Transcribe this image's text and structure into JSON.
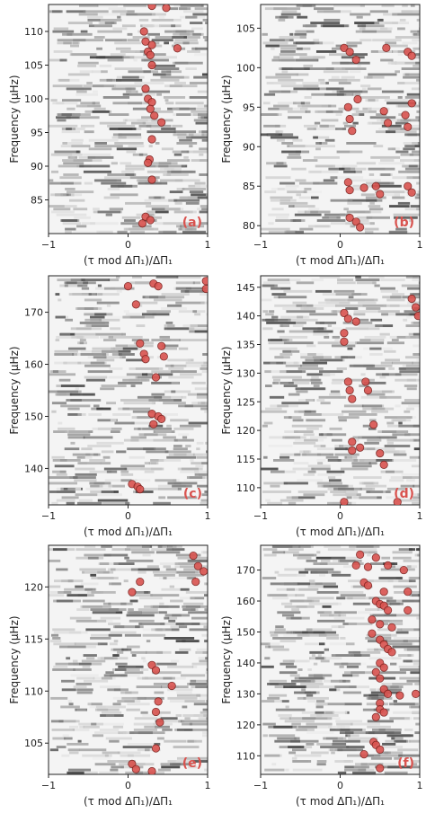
{
  "figure": {
    "background": "#ffffff",
    "dot_color": "#d9534f",
    "dot_edge": "#7a1f1c"
  },
  "chart_data": [
    {
      "panel": "(a)",
      "type": "heatmap",
      "xlabel": "(τ mod ΔΠ₁)/ΔΠ₁",
      "ylabel": "Frequency (μHz)",
      "xlim": [
        -1,
        1
      ],
      "ylim": [
        80,
        114
      ],
      "xticks": [
        -1,
        0,
        1
      ],
      "yticks": [
        85,
        90,
        95,
        100,
        105,
        110
      ],
      "points": [
        [
          0.3,
          113.8
        ],
        [
          0.48,
          113.5
        ],
        [
          0.2,
          110.0
        ],
        [
          0.22,
          108.5
        ],
        [
          0.3,
          108.0
        ],
        [
          0.62,
          107.5
        ],
        [
          0.25,
          107.0
        ],
        [
          0.28,
          106.5
        ],
        [
          0.3,
          105.0
        ],
        [
          0.22,
          101.5
        ],
        [
          0.25,
          100.0
        ],
        [
          0.3,
          99.5
        ],
        [
          0.28,
          98.5
        ],
        [
          0.33,
          97.5
        ],
        [
          0.42,
          96.5
        ],
        [
          0.3,
          94.0
        ],
        [
          0.27,
          91.0
        ],
        [
          0.25,
          90.5
        ],
        [
          0.3,
          88.0
        ],
        [
          0.22,
          82.5
        ],
        [
          0.28,
          82.0
        ],
        [
          0.18,
          81.5
        ]
      ]
    },
    {
      "panel": "(b)",
      "type": "heatmap",
      "xlabel": "(τ mod ΔΠ₁)/ΔΠ₁",
      "ylabel": "Frequency (μHz)",
      "xlim": [
        -1,
        1
      ],
      "ylim": [
        79,
        108
      ],
      "xticks": [
        -1,
        0,
        1
      ],
      "yticks": [
        80,
        85,
        90,
        95,
        100,
        105
      ],
      "points": [
        [
          0.05,
          102.5
        ],
        [
          0.12,
          102.0
        ],
        [
          0.2,
          101.0
        ],
        [
          0.58,
          102.5
        ],
        [
          0.85,
          102.0
        ],
        [
          0.9,
          101.5
        ],
        [
          0.1,
          95.0
        ],
        [
          0.12,
          93.5
        ],
        [
          0.15,
          92.0
        ],
        [
          0.22,
          96.0
        ],
        [
          0.55,
          94.5
        ],
        [
          0.6,
          93.0
        ],
        [
          0.82,
          94.0
        ],
        [
          0.85,
          92.5
        ],
        [
          0.9,
          95.5
        ],
        [
          0.1,
          85.5
        ],
        [
          0.12,
          84.5
        ],
        [
          0.3,
          84.8
        ],
        [
          0.45,
          85.0
        ],
        [
          0.5,
          84.0
        ],
        [
          0.85,
          85.0
        ],
        [
          0.9,
          84.2
        ],
        [
          0.12,
          81.0
        ],
        [
          0.2,
          80.5
        ],
        [
          0.25,
          79.8
        ]
      ]
    },
    {
      "panel": "(c)",
      "type": "heatmap",
      "xlabel": "(τ mod ΔΠ₁)/ΔΠ₁",
      "ylabel": "Frequency (μHz)",
      "xlim": [
        -1,
        1
      ],
      "ylim": [
        133,
        177
      ],
      "xticks": [
        -1,
        0,
        1
      ],
      "yticks": [
        140,
        150,
        160,
        170
      ],
      "points": [
        [
          0.0,
          175.0
        ],
        [
          0.32,
          175.5
        ],
        [
          0.38,
          175.0
        ],
        [
          0.98,
          176.0
        ],
        [
          0.98,
          174.5
        ],
        [
          0.1,
          171.5
        ],
        [
          0.15,
          164.0
        ],
        [
          0.2,
          162.0
        ],
        [
          0.22,
          161.0
        ],
        [
          0.42,
          163.5
        ],
        [
          0.45,
          161.5
        ],
        [
          0.35,
          157.5
        ],
        [
          0.3,
          150.5
        ],
        [
          0.38,
          150.0
        ],
        [
          0.42,
          149.5
        ],
        [
          0.32,
          148.5
        ],
        [
          0.05,
          137.0
        ],
        [
          0.12,
          136.5
        ],
        [
          0.15,
          136.0
        ]
      ]
    },
    {
      "panel": "(d)",
      "type": "heatmap",
      "xlabel": "(τ mod ΔΠ₁)/ΔΠ₁",
      "ylabel": "Frequency (μHz)",
      "xlim": [
        -1,
        1
      ],
      "ylim": [
        107,
        147
      ],
      "xticks": [
        -1,
        0,
        1
      ],
      "yticks": [
        110,
        115,
        120,
        125,
        130,
        135,
        140,
        145
      ],
      "points": [
        [
          0.9,
          143.0
        ],
        [
          0.95,
          141.5
        ],
        [
          0.98,
          140.0
        ],
        [
          0.05,
          140.5
        ],
        [
          0.1,
          139.5
        ],
        [
          0.2,
          139.0
        ],
        [
          0.05,
          137.0
        ],
        [
          0.05,
          135.5
        ],
        [
          0.1,
          128.5
        ],
        [
          0.12,
          127.0
        ],
        [
          0.15,
          125.5
        ],
        [
          0.32,
          128.5
        ],
        [
          0.35,
          127.0
        ],
        [
          0.42,
          121.0
        ],
        [
          0.15,
          118.0
        ],
        [
          0.15,
          116.5
        ],
        [
          0.25,
          117.0
        ],
        [
          0.5,
          116.0
        ],
        [
          0.55,
          114.0
        ],
        [
          0.05,
          107.5
        ],
        [
          0.72,
          107.5
        ]
      ]
    },
    {
      "panel": "(e)",
      "type": "heatmap",
      "xlabel": "(τ mod ΔΠ₁)/ΔΠ₁",
      "ylabel": "Frequency (μHz)",
      "xlim": [
        -1,
        1
      ],
      "ylim": [
        102,
        124
      ],
      "xticks": [
        -1,
        0,
        1
      ],
      "yticks": [
        105,
        110,
        115,
        120
      ],
      "points": [
        [
          0.82,
          123.0
        ],
        [
          0.88,
          122.0
        ],
        [
          0.95,
          121.5
        ],
        [
          0.85,
          120.5
        ],
        [
          0.15,
          120.5
        ],
        [
          0.05,
          119.5
        ],
        [
          0.3,
          112.5
        ],
        [
          0.35,
          112.0
        ],
        [
          0.55,
          110.5
        ],
        [
          0.38,
          109.0
        ],
        [
          0.35,
          108.0
        ],
        [
          0.4,
          107.0
        ],
        [
          0.35,
          104.5
        ],
        [
          0.05,
          103.0
        ],
        [
          0.1,
          102.5
        ],
        [
          0.3,
          102.3
        ]
      ]
    },
    {
      "panel": "(f)",
      "type": "heatmap",
      "xlabel": "(τ mod ΔΠ₁)/ΔΠ₁",
      "ylabel": "Frequency (μHz)",
      "xlim": [
        -1,
        1
      ],
      "ylim": [
        104,
        178
      ],
      "xticks": [
        -1,
        0,
        1
      ],
      "yticks": [
        110,
        120,
        130,
        140,
        150,
        160,
        170
      ],
      "points": [
        [
          0.25,
          175.0
        ],
        [
          0.45,
          174.0
        ],
        [
          0.2,
          171.5
        ],
        [
          0.35,
          171.0
        ],
        [
          0.6,
          171.5
        ],
        [
          0.8,
          170.0
        ],
        [
          0.3,
          166.0
        ],
        [
          0.35,
          165.0
        ],
        [
          0.55,
          163.0
        ],
        [
          0.85,
          163.0
        ],
        [
          0.45,
          160.0
        ],
        [
          0.5,
          159.0
        ],
        [
          0.55,
          158.5
        ],
        [
          0.6,
          157.0
        ],
        [
          0.85,
          157.0
        ],
        [
          0.4,
          154.0
        ],
        [
          0.5,
          152.5
        ],
        [
          0.65,
          151.5
        ],
        [
          0.4,
          149.5
        ],
        [
          0.5,
          147.5
        ],
        [
          0.55,
          146.0
        ],
        [
          0.6,
          144.5
        ],
        [
          0.65,
          143.5
        ],
        [
          0.5,
          140.0
        ],
        [
          0.55,
          138.5
        ],
        [
          0.45,
          137.0
        ],
        [
          0.5,
          135.0
        ],
        [
          0.55,
          131.5
        ],
        [
          0.6,
          130.0
        ],
        [
          0.95,
          130.0
        ],
        [
          0.75,
          129.5
        ],
        [
          0.5,
          127.0
        ],
        [
          0.5,
          125.0
        ],
        [
          0.55,
          124.0
        ],
        [
          0.45,
          122.5
        ],
        [
          0.42,
          114.5
        ],
        [
          0.45,
          113.5
        ],
        [
          0.5,
          112.0
        ],
        [
          0.3,
          110.5
        ],
        [
          0.5,
          106.0
        ]
      ]
    }
  ]
}
